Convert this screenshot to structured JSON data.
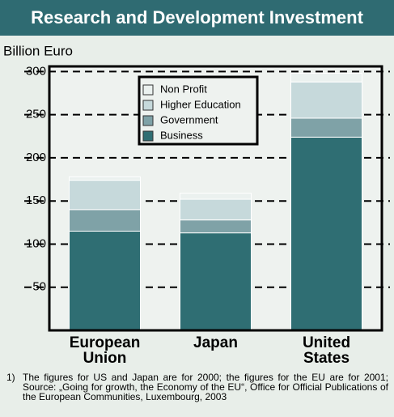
{
  "chart_data": {
    "type": "stacked_bar",
    "title": "Research and Development Investment",
    "y_label": "Billion Euro",
    "categories": [
      "European Union",
      "Japan",
      "United States"
    ],
    "series": [
      {
        "name": "Business",
        "color": "#2f6e73",
        "values": [
          115,
          113,
          224
        ]
      },
      {
        "name": "Government",
        "color": "#7fa2a7",
        "values": [
          25,
          15,
          22
        ]
      },
      {
        "name": "Higher Education",
        "color": "#c6d9db",
        "values": [
          34,
          24,
          42
        ]
      },
      {
        "name": "Non Profit",
        "color": "#ebf1ef",
        "values": [
          4,
          7,
          10
        ]
      }
    ],
    "ylim": [
      0,
      306
    ],
    "yticks": [
      50,
      100,
      150,
      200,
      250,
      300
    ],
    "grid": true,
    "footnote_marker": "1)",
    "footnote": "The figures for US and Japan are for 2000; the figures for the EU are for 2001; Source: „Going for growth, the Economy of the EU“, Office for Official Publications of the European Communities, Luxembourg, 2003"
  }
}
